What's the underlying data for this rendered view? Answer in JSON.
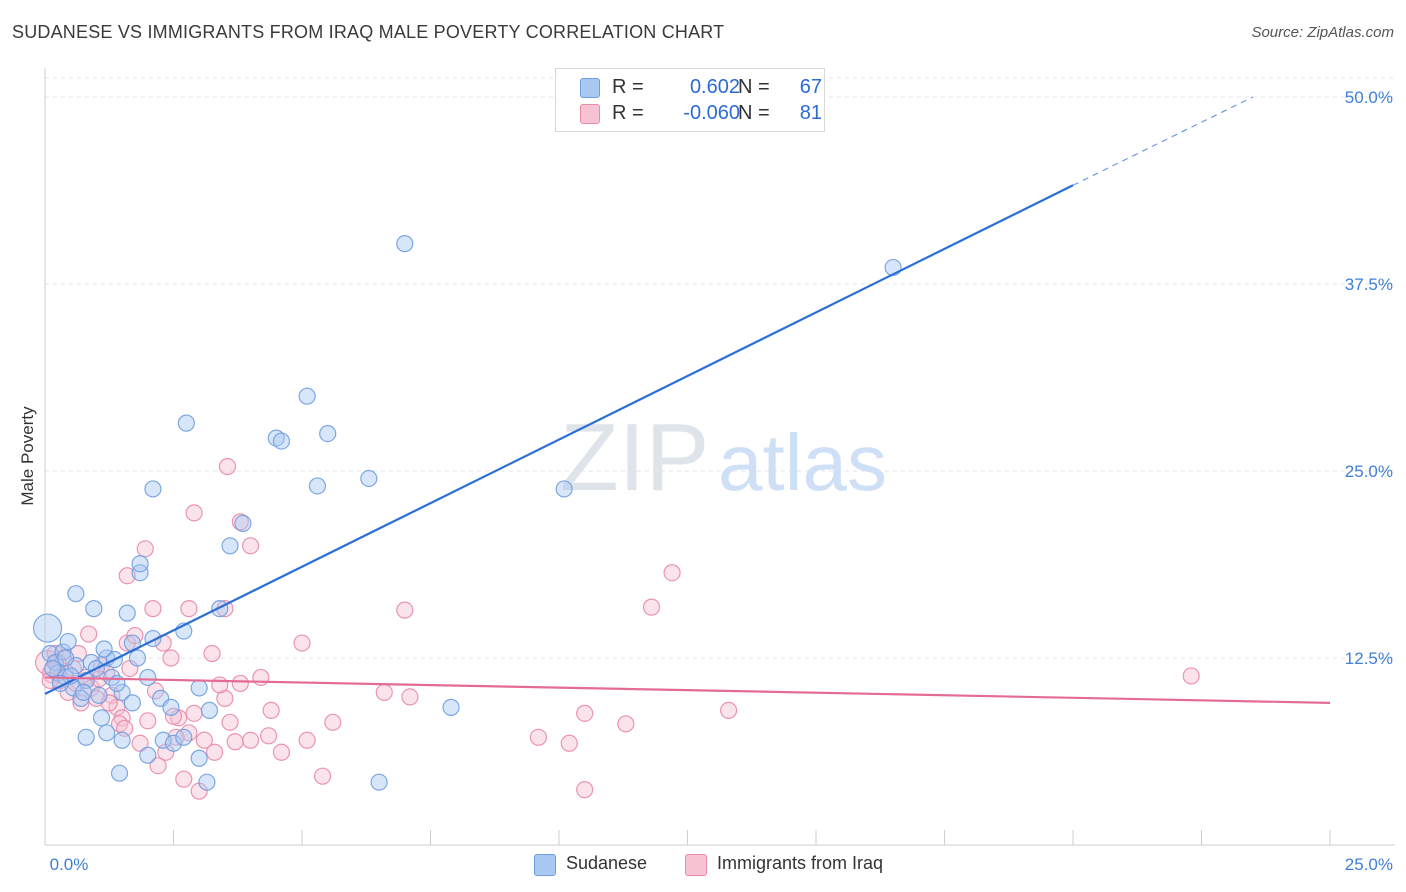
{
  "title": "SUDANESE VS IMMIGRANTS FROM IRAQ MALE POVERTY CORRELATION CHART",
  "source": "Source: ZipAtlas.com",
  "colors": {
    "blue_fill": "#a9c8f2",
    "blue_stroke": "#6f9ee0",
    "blue_line": "#2b6fd6",
    "pink_fill": "#f7c2d2",
    "pink_stroke": "#e98aa8",
    "pink_line": "#e56b97",
    "tick_text": "#3f7fd6",
    "grid": "#e3e3e3"
  },
  "legend": {
    "rows": [
      {
        "r_label": "R =",
        "r_value": "0.602",
        "n_label": "N =",
        "n_value": "67"
      },
      {
        "r_label": "R =",
        "r_value": "-0.060",
        "n_label": "N =",
        "n_value": "81"
      }
    ]
  },
  "watermark": {
    "zip": "ZIP",
    "atlas": "atlas"
  },
  "chart_data": {
    "type": "scatter",
    "title": "SUDANESE VS IMMIGRANTS FROM IRAQ MALE POVERTY CORRELATION CHART",
    "xlabel": "",
    "ylabel": "Male Poverty",
    "xlim": [
      0,
      25
    ],
    "ylim": [
      0,
      50
    ],
    "x_tick_labels": [
      "0.0%",
      "25.0%"
    ],
    "y_ticks": [
      12.5,
      25.0,
      37.5,
      50.0
    ],
    "y_tick_labels": [
      "12.5%",
      "25.0%",
      "37.5%",
      "50.0%"
    ],
    "grid": true,
    "series": [
      {
        "name": "Sudanese",
        "color": "#6f9ee0",
        "trend": {
          "x0": 0,
          "y0": 10.1,
          "x1": 20,
          "y1": 44.1,
          "dashed_to_x": 23.5,
          "dashed_to_y": 50.0
        },
        "points": [
          [
            0.05,
            14.5,
            14
          ],
          [
            0.1,
            12.8,
            8
          ],
          [
            0.2,
            12.2,
            8
          ],
          [
            0.25,
            11.5,
            8
          ],
          [
            0.35,
            12.9,
            8
          ],
          [
            0.4,
            11.2,
            8
          ],
          [
            0.45,
            13.6,
            8
          ],
          [
            0.55,
            10.5,
            8
          ],
          [
            0.6,
            12.0,
            8
          ],
          [
            0.7,
            9.8,
            8
          ],
          [
            0.8,
            11.0,
            8
          ],
          [
            0.9,
            12.2,
            8
          ],
          [
            1.0,
            11.8,
            8
          ],
          [
            1.05,
            10.0,
            8
          ],
          [
            1.2,
            12.5,
            8
          ],
          [
            1.3,
            11.2,
            8
          ],
          [
            1.5,
            10.2,
            8
          ],
          [
            1.7,
            13.5,
            8
          ],
          [
            1.8,
            12.5,
            8
          ],
          [
            2.1,
            13.8,
            8
          ],
          [
            0.6,
            16.8,
            8
          ],
          [
            0.95,
            15.8,
            8
          ],
          [
            1.6,
            15.5,
            8
          ],
          [
            1.85,
            18.2,
            8
          ],
          [
            1.85,
            18.8,
            8
          ],
          [
            2.1,
            23.8,
            8
          ],
          [
            2.75,
            28.2,
            8
          ],
          [
            2.7,
            14.3,
            8
          ],
          [
            3.4,
            15.8,
            8
          ],
          [
            3.6,
            20.0,
            8
          ],
          [
            3.85,
            21.5,
            8
          ],
          [
            4.5,
            27.2,
            8
          ],
          [
            4.6,
            27.0,
            8
          ],
          [
            5.1,
            30.0,
            8
          ],
          [
            5.5,
            27.5,
            8
          ],
          [
            5.3,
            24.0,
            8
          ],
          [
            6.3,
            24.5,
            8
          ],
          [
            7.0,
            40.2,
            8
          ],
          [
            10.1,
            23.8,
            8
          ],
          [
            16.5,
            38.6,
            8
          ],
          [
            0.8,
            7.2,
            8
          ],
          [
            1.2,
            7.5,
            8
          ],
          [
            1.5,
            7.0,
            8
          ],
          [
            2.0,
            6.0,
            8
          ],
          [
            2.3,
            7.0,
            8
          ],
          [
            2.5,
            6.8,
            8
          ],
          [
            2.7,
            7.2,
            8
          ],
          [
            3.0,
            5.8,
            8
          ],
          [
            3.2,
            9.0,
            8
          ],
          [
            1.45,
            4.8,
            8
          ],
          [
            3.15,
            4.2,
            8
          ],
          [
            6.5,
            4.2,
            8
          ],
          [
            1.7,
            9.5,
            8
          ],
          [
            2.25,
            9.8,
            8
          ],
          [
            2.45,
            9.2,
            8
          ],
          [
            3.0,
            10.5,
            8
          ],
          [
            1.1,
            8.5,
            8
          ],
          [
            0.75,
            10.2,
            8
          ],
          [
            1.4,
            10.8,
            8
          ],
          [
            0.5,
            11.3,
            8
          ],
          [
            0.3,
            10.8,
            8
          ],
          [
            0.15,
            11.8,
            8
          ],
          [
            2.0,
            11.2,
            8
          ],
          [
            0.4,
            12.5,
            8
          ],
          [
            1.35,
            12.4,
            8
          ],
          [
            1.15,
            13.1,
            8
          ],
          [
            7.9,
            9.2,
            8
          ]
        ]
      },
      {
        "name": "Immigrants from Iraq",
        "color": "#e98aa8",
        "trend": {
          "x0": 0,
          "y0": 11.2,
          "x1": 25,
          "y1": 9.5
        },
        "points": [
          [
            0.05,
            12.2,
            12
          ],
          [
            0.15,
            11.5,
            10
          ],
          [
            0.2,
            12.8,
            8
          ],
          [
            0.3,
            11.0,
            8
          ],
          [
            0.35,
            12.5,
            8
          ],
          [
            0.45,
            10.2,
            8
          ],
          [
            0.55,
            11.8,
            8
          ],
          [
            0.6,
            10.8,
            8
          ],
          [
            0.7,
            9.5,
            8
          ],
          [
            0.8,
            11.2,
            8
          ],
          [
            0.9,
            10.5,
            8
          ],
          [
            1.0,
            9.8,
            8
          ],
          [
            1.1,
            12.0,
            8
          ],
          [
            1.2,
            11.5,
            8
          ],
          [
            1.3,
            10.0,
            8
          ],
          [
            1.4,
            9.2,
            8
          ],
          [
            1.5,
            8.5,
            8
          ],
          [
            1.6,
            13.5,
            8
          ],
          [
            1.75,
            14.0,
            8
          ],
          [
            1.65,
            11.8,
            8
          ],
          [
            1.6,
            18.0,
            8
          ],
          [
            1.95,
            19.8,
            8
          ],
          [
            2.1,
            15.8,
            8
          ],
          [
            2.3,
            13.5,
            8
          ],
          [
            2.45,
            12.5,
            8
          ],
          [
            2.6,
            8.5,
            8
          ],
          [
            2.8,
            7.5,
            8
          ],
          [
            2.9,
            8.8,
            8
          ],
          [
            3.1,
            7.0,
            8
          ],
          [
            3.3,
            6.2,
            8
          ],
          [
            3.5,
            9.8,
            8
          ],
          [
            3.6,
            8.2,
            8
          ],
          [
            3.8,
            10.8,
            8
          ],
          [
            4.0,
            7.0,
            8
          ],
          [
            4.2,
            11.2,
            8
          ],
          [
            4.4,
            9.0,
            8
          ],
          [
            4.6,
            6.2,
            8
          ],
          [
            5.0,
            13.5,
            8
          ],
          [
            5.1,
            7.0,
            8
          ],
          [
            5.4,
            4.6,
            8
          ],
          [
            5.6,
            8.2,
            8
          ],
          [
            2.9,
            22.2,
            8
          ],
          [
            3.55,
            25.3,
            8
          ],
          [
            3.8,
            21.6,
            8
          ],
          [
            4.0,
            20.0,
            8
          ],
          [
            3.5,
            15.8,
            8
          ],
          [
            2.8,
            15.8,
            8
          ],
          [
            3.25,
            12.8,
            8
          ],
          [
            2.55,
            7.2,
            8
          ],
          [
            2.7,
            4.4,
            8
          ],
          [
            2.2,
            5.3,
            8
          ],
          [
            3.0,
            3.6,
            8
          ],
          [
            6.6,
            10.2,
            8
          ],
          [
            7.0,
            15.7,
            8
          ],
          [
            7.1,
            9.9,
            8
          ],
          [
            9.6,
            7.2,
            8
          ],
          [
            10.2,
            6.8,
            8
          ],
          [
            10.5,
            8.8,
            8
          ],
          [
            10.5,
            3.7,
            8
          ],
          [
            11.3,
            8.1,
            8
          ],
          [
            11.8,
            15.9,
            8
          ],
          [
            12.2,
            18.2,
            8
          ],
          [
            13.3,
            9.0,
            8
          ],
          [
            22.3,
            11.3,
            8
          ],
          [
            0.4,
            11.6,
            8
          ],
          [
            0.25,
            12.2,
            8
          ],
          [
            0.65,
            12.8,
            8
          ],
          [
            0.85,
            14.1,
            8
          ],
          [
            1.05,
            11.1,
            8
          ],
          [
            1.25,
            9.5,
            8
          ],
          [
            1.45,
            8.1,
            8
          ],
          [
            1.85,
            6.8,
            8
          ],
          [
            2.0,
            8.3,
            8
          ],
          [
            2.15,
            10.3,
            8
          ],
          [
            2.35,
            6.2,
            8
          ],
          [
            2.5,
            8.6,
            8
          ],
          [
            3.4,
            10.7,
            8
          ],
          [
            3.7,
            6.9,
            8
          ],
          [
            4.35,
            7.3,
            8
          ],
          [
            0.1,
            11.0,
            8
          ],
          [
            1.55,
            7.8,
            8
          ]
        ]
      }
    ]
  },
  "bottom_legend": [
    {
      "label": "Sudanese"
    },
    {
      "label": "Immigrants from Iraq"
    }
  ]
}
